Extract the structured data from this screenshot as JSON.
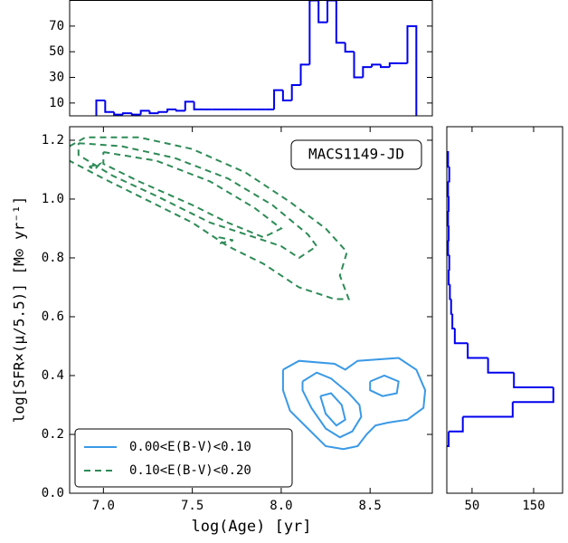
{
  "chart_data": [
    {
      "type": "contour",
      "x_label": "log(Age)  [yr]",
      "y_label": "log[SFR×(μ/5.5)] [M⊙ yr⁻¹]",
      "annotation": "MACS1149-JD",
      "legend": "lower left",
      "xlim": [
        6.81,
        8.85
      ],
      "ylim": [
        0,
        1.246
      ],
      "xticks": [
        {
          "value": 7,
          "label": "7.0"
        },
        7.5,
        {
          "value": 8,
          "label": "8.0"
        },
        8.5
      ],
      "yticks": [
        {
          "value": 0,
          "label": "0.0"
        },
        0.2,
        0.4,
        0.6,
        0.8,
        {
          "value": 1,
          "label": "1.0"
        },
        1.2
      ],
      "series": [
        {
          "name": "0.00<E(B-V)<0.10",
          "color": "#3a99e6",
          "dashed": false,
          "contours": [
            {
              "x": [
                8.01,
                8.1,
                8.3,
                8.36,
                8.43,
                8.66,
                8.76,
                8.81,
                8.8,
                8.71,
                8.6,
                8.53,
                8.48,
                8.43,
                8.35,
                8.25,
                8.15,
                8.05,
                8.01,
                8.01
              ],
              "y": [
                0.42,
                0.45,
                0.44,
                0.42,
                0.45,
                0.46,
                0.42,
                0.35,
                0.29,
                0.25,
                0.24,
                0.23,
                0.2,
                0.16,
                0.15,
                0.16,
                0.22,
                0.28,
                0.35,
                0.42
              ]
            },
            {
              "x": [
                8.12,
                8.2,
                8.28,
                8.38,
                8.44,
                8.45,
                8.4,
                8.33,
                8.25,
                8.17,
                8.12,
                8.12
              ],
              "y": [
                0.38,
                0.41,
                0.39,
                0.34,
                0.3,
                0.26,
                0.21,
                0.19,
                0.22,
                0.29,
                0.35,
                0.38
              ]
            },
            {
              "x": [
                8.5,
                8.58,
                8.66,
                8.65,
                8.57,
                8.5,
                8.5
              ],
              "y": [
                0.38,
                0.4,
                0.38,
                0.34,
                0.33,
                0.35,
                0.38
              ]
            },
            {
              "x": [
                8.22,
                8.28,
                8.34,
                8.36,
                8.31,
                8.25,
                8.22
              ],
              "y": [
                0.33,
                0.34,
                0.3,
                0.25,
                0.23,
                0.27,
                0.33
              ]
            }
          ]
        },
        {
          "name": "0.10<E(B-V)<0.20",
          "color": "#2e8b57",
          "dashed": true,
          "contours": [
            {
              "x": [
                6.81,
                6.9,
                7.2,
                7.5,
                7.8,
                8.05,
                8.25,
                8.37,
                8.33,
                8.38,
                8.3,
                8.1,
                7.9,
                7.7,
                7.5,
                7.2,
                7.0,
                6.81
              ],
              "y": [
                1.18,
                1.21,
                1.21,
                1.17,
                1.09,
                0.99,
                0.9,
                0.82,
                0.74,
                0.66,
                0.66,
                0.7,
                0.78,
                0.84,
                0.92,
                1.01,
                1.07,
                1.13
              ]
            },
            {
              "x": [
                6.86,
                7.1,
                7.4,
                7.7,
                7.95,
                8.15,
                8.2,
                8.1,
                8.0,
                7.85,
                7.6,
                7.3,
                7.05,
                6.86,
                6.86
              ],
              "y": [
                1.19,
                1.18,
                1.14,
                1.07,
                0.98,
                0.88,
                0.84,
                0.8,
                0.84,
                0.87,
                0.92,
                1.01,
                1.08,
                1.15,
                1.19
              ]
            },
            {
              "x": [
                7.0,
                7.3,
                7.6,
                7.85,
                8.0,
                7.9,
                7.7,
                7.5,
                7.2,
                7.0,
                7.0
              ],
              "y": [
                1.16,
                1.13,
                1.06,
                0.97,
                0.9,
                0.87,
                0.92,
                0.98,
                1.06,
                1.12,
                1.16
              ]
            },
            {
              "x": [
                7.65,
                7.73,
                7.66,
                7.65
              ],
              "y": [
                0.87,
                0.86,
                0.85,
                0.87
              ]
            },
            {
              "x": [
                6.92,
                6.98,
                6.95,
                6.92
              ],
              "y": [
                1.11,
                1.12,
                1.1,
                1.11
              ]
            }
          ]
        }
      ]
    },
    {
      "type": "histogram",
      "orientation": "vertical",
      "color": "#0000ee",
      "xlim": [
        6.81,
        8.85
      ],
      "ylim": [
        0,
        90
      ],
      "yticks": [
        10,
        30,
        50,
        70
      ],
      "bins": [
        6.96,
        7.01,
        7.06,
        7.11,
        7.16,
        7.21,
        7.26,
        7.31,
        7.36,
        7.41,
        7.46,
        7.51,
        7.56,
        7.61,
        7.66,
        7.71,
        7.76,
        7.81,
        7.86,
        7.91,
        7.96,
        8.01,
        8.06,
        8.11,
        8.16,
        8.21,
        8.26,
        8.31,
        8.36,
        8.41,
        8.46,
        8.51,
        8.56,
        8.61,
        8.66,
        8.71,
        8.76
      ],
      "values": [
        12,
        3,
        1,
        2,
        1,
        4,
        2,
        3,
        5,
        4,
        11,
        5,
        5,
        5,
        5,
        5,
        5,
        5,
        5,
        5,
        20,
        12,
        24,
        40,
        90,
        73,
        90,
        57,
        50,
        30,
        38,
        40,
        38,
        41,
        41,
        70
      ]
    },
    {
      "type": "histogram",
      "orientation": "horizontal",
      "color": "#0000ee",
      "xlim": [
        9,
        197
      ],
      "ylim": [
        0,
        1.246
      ],
      "xticks": [
        50,
        150
      ],
      "bins": [
        0.16,
        0.21,
        0.26,
        0.31,
        0.36,
        0.41,
        0.46,
        0.51,
        0.56,
        0.61,
        0.66,
        0.71,
        0.76,
        0.81,
        0.86,
        0.91,
        0.96,
        1.01,
        1.06,
        1.11,
        1.16
      ],
      "values": [
        12,
        35,
        116,
        182,
        118,
        76,
        43,
        22,
        18,
        16,
        14,
        12,
        13,
        11,
        12,
        11,
        12,
        11,
        13,
        11
      ]
    }
  ]
}
